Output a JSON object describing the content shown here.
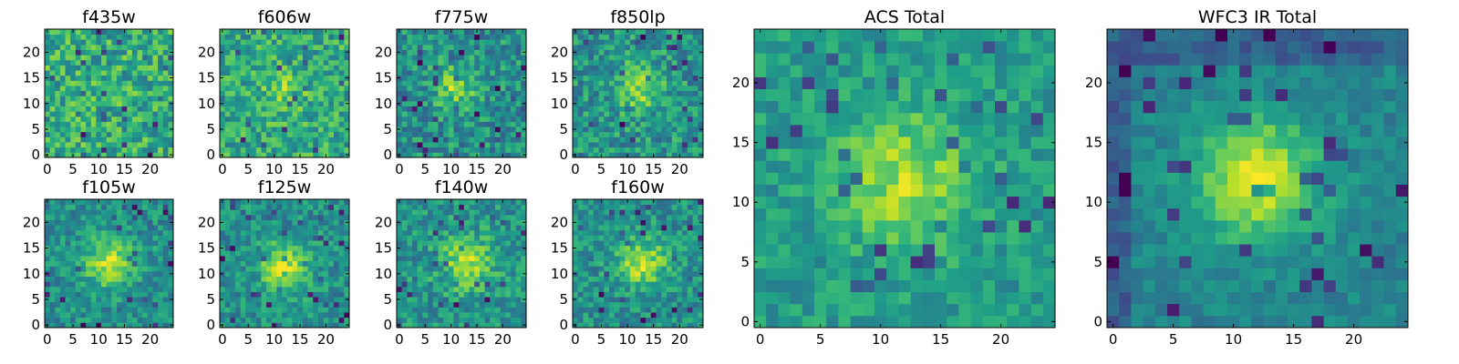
{
  "chart_data": [
    {
      "type": "heatmap",
      "title": "f435w",
      "colormap": "viridis",
      "grid": false,
      "xlim": [
        -0.5,
        24.5
      ],
      "ylim": [
        -0.5,
        24.5
      ],
      "xticks": [
        0,
        5,
        10,
        15,
        20
      ],
      "yticks": [
        0,
        5,
        10,
        15,
        20
      ],
      "peak": null
    },
    {
      "type": "heatmap",
      "title": "f606w",
      "colormap": "viridis",
      "grid": false,
      "xlim": [
        -0.5,
        24.5
      ],
      "ylim": [
        -0.5,
        24.5
      ],
      "xticks": [
        0,
        5,
        10,
        15,
        20
      ],
      "yticks": [
        0,
        5,
        10,
        15,
        20
      ],
      "peak": [
        12,
        12
      ]
    },
    {
      "type": "heatmap",
      "title": "f775w",
      "colormap": "viridis",
      "grid": false,
      "xlim": [
        -0.5,
        24.5
      ],
      "ylim": [
        -0.5,
        24.5
      ],
      "xticks": [
        0,
        5,
        10,
        15,
        20
      ],
      "yticks": [
        0,
        5,
        10,
        15,
        20
      ],
      "peak": [
        11,
        13
      ]
    },
    {
      "type": "heatmap",
      "title": "f850lp",
      "colormap": "viridis",
      "grid": false,
      "xlim": [
        -0.5,
        24.5
      ],
      "ylim": [
        -0.5,
        24.5
      ],
      "xticks": [
        0,
        5,
        10,
        15,
        20
      ],
      "yticks": [
        0,
        5,
        10,
        15,
        20
      ],
      "peak": [
        12,
        13
      ]
    },
    {
      "type": "heatmap",
      "title": "f105w",
      "colormap": "viridis",
      "grid": false,
      "xlim": [
        -0.5,
        24.5
      ],
      "ylim": [
        -0.5,
        24.5
      ],
      "xticks": [
        0,
        5,
        10,
        15,
        20
      ],
      "yticks": [
        0,
        5,
        10,
        15,
        20
      ],
      "peak": [
        12,
        12
      ]
    },
    {
      "type": "heatmap",
      "title": "f125w",
      "colormap": "viridis",
      "grid": false,
      "xlim": [
        -0.5,
        24.5
      ],
      "ylim": [
        -0.5,
        24.5
      ],
      "xticks": [
        0,
        5,
        10,
        15,
        20
      ],
      "yticks": [
        0,
        5,
        10,
        15,
        20
      ],
      "peak": [
        12,
        11
      ]
    },
    {
      "type": "heatmap",
      "title": "f140w",
      "colormap": "viridis",
      "grid": false,
      "xlim": [
        -0.5,
        24.5
      ],
      "ylim": [
        -0.5,
        24.5
      ],
      "xticks": [
        0,
        5,
        10,
        15,
        20
      ],
      "yticks": [
        0,
        5,
        10,
        15,
        20
      ],
      "peak": [
        13,
        12
      ]
    },
    {
      "type": "heatmap",
      "title": "f160w",
      "colormap": "viridis",
      "grid": false,
      "xlim": [
        -0.5,
        24.5
      ],
      "ylim": [
        -0.5,
        24.5
      ],
      "xticks": [
        0,
        5,
        10,
        15,
        20
      ],
      "yticks": [
        0,
        5,
        10,
        15,
        20
      ],
      "peak": [
        13,
        12
      ]
    },
    {
      "type": "heatmap",
      "title": "ACS Total",
      "colormap": "viridis",
      "grid": false,
      "xlim": [
        -0.5,
        24.5
      ],
      "ylim": [
        -0.5,
        24.5
      ],
      "xticks": [
        0,
        5,
        10,
        15,
        20
      ],
      "yticks": [
        0,
        5,
        10,
        15,
        20
      ],
      "peak": [
        12,
        12
      ]
    },
    {
      "type": "heatmap",
      "title": "WFC3 IR Total",
      "colormap": "viridis",
      "grid": false,
      "xlim": [
        -0.5,
        24.5
      ],
      "ylim": [
        -0.5,
        24.5
      ],
      "xticks": [
        0,
        5,
        10,
        15,
        20
      ],
      "yticks": [
        0,
        5,
        10,
        15,
        20
      ],
      "peak": [
        12,
        12
      ]
    }
  ]
}
